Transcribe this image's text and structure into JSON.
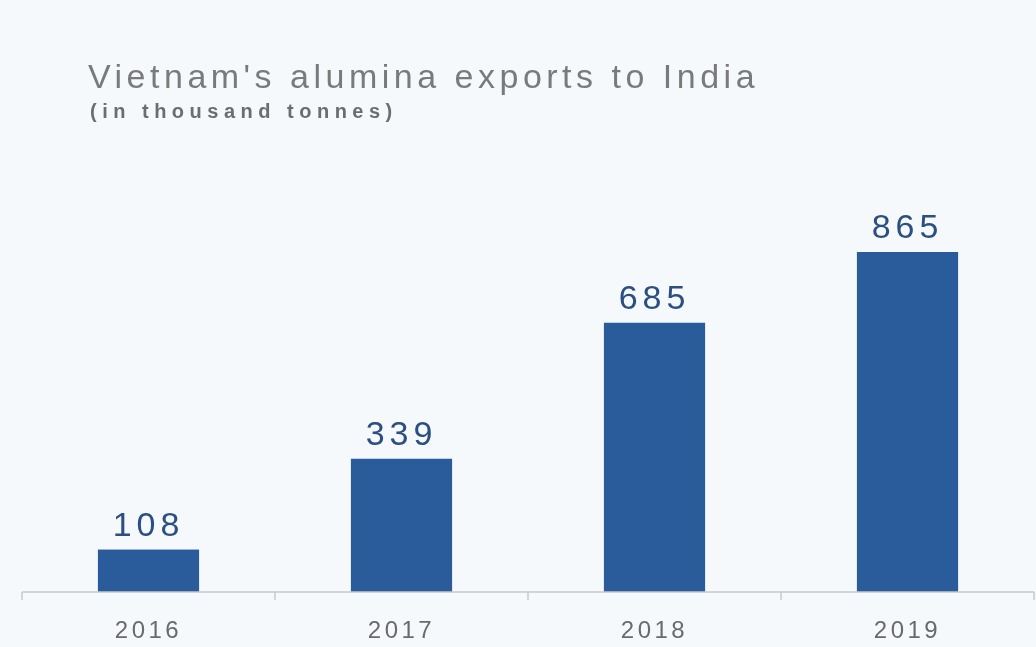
{
  "chart_data": {
    "type": "bar",
    "title": "Vietnam's alumina exports to India",
    "subtitle": "(in thousand tonnes)",
    "categories": [
      "2016",
      "2017",
      "2018",
      "2019"
    ],
    "values": [
      108,
      339,
      685,
      865
    ],
    "color": "#2a5b9a",
    "data_labels": true
  }
}
